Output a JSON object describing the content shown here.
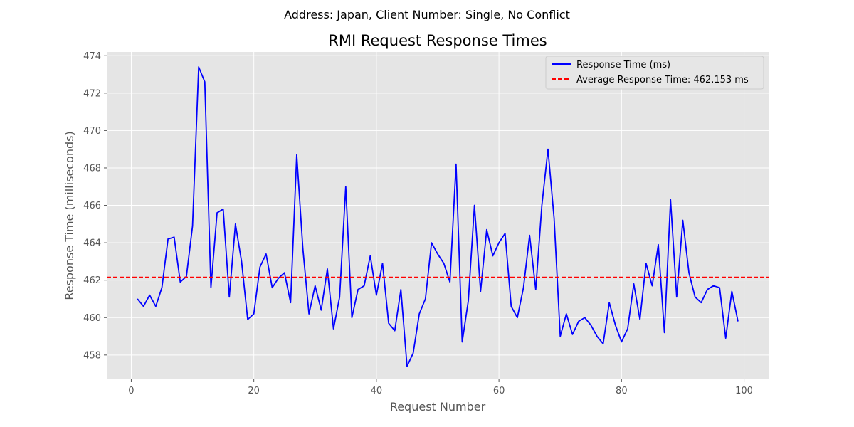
{
  "suptitle": "Address: Japan, Client Number: Single, No Conflict",
  "chart_data": {
    "type": "line",
    "title": "RMI Request Response Times",
    "xlabel": "Request Number",
    "ylabel": "Response Time (milliseconds)",
    "xlim": [
      -4,
      104
    ],
    "ylim": [
      456.7,
      474.2
    ],
    "x_ticks": [
      0,
      20,
      40,
      60,
      80,
      100
    ],
    "y_ticks": [
      458,
      460,
      462,
      464,
      466,
      468,
      470,
      472,
      474
    ],
    "grid": true,
    "legend_position": "top-right",
    "series": [
      {
        "name": "Response Time (ms)",
        "color": "#0000ff",
        "style": "solid",
        "x": [
          1,
          2,
          3,
          4,
          5,
          6,
          7,
          8,
          9,
          10,
          11,
          12,
          13,
          14,
          15,
          16,
          17,
          18,
          19,
          20,
          21,
          22,
          23,
          24,
          25,
          26,
          27,
          28,
          29,
          30,
          31,
          32,
          33,
          34,
          35,
          36,
          37,
          38,
          39,
          40,
          41,
          42,
          43,
          44,
          45,
          46,
          47,
          48,
          49,
          50,
          51,
          52,
          53,
          54,
          55,
          56,
          57,
          58,
          59,
          60,
          61,
          62,
          63,
          64,
          65,
          66,
          67,
          68,
          69,
          70,
          71,
          72,
          73,
          74,
          75,
          76,
          77,
          78,
          79,
          80,
          81,
          82,
          83,
          84,
          85,
          86,
          87,
          88,
          89,
          90,
          91,
          92,
          93,
          94,
          95,
          96,
          97,
          98,
          99
        ],
        "values": [
          461.0,
          460.6,
          461.2,
          460.6,
          461.6,
          464.2,
          464.3,
          461.9,
          462.2,
          464.9,
          473.4,
          472.6,
          461.6,
          465.6,
          465.8,
          461.1,
          465.0,
          463.0,
          459.9,
          460.2,
          462.7,
          463.4,
          461.6,
          462.1,
          462.4,
          460.8,
          468.7,
          463.7,
          460.2,
          461.7,
          460.4,
          462.6,
          459.4,
          461.1,
          467.0,
          460.0,
          461.5,
          461.7,
          463.3,
          461.2,
          462.9,
          459.7,
          459.3,
          461.5,
          457.4,
          458.1,
          460.2,
          461.0,
          464.0,
          463.4,
          462.9,
          461.9,
          468.2,
          458.7,
          460.9,
          466.0,
          461.4,
          464.7,
          463.3,
          464.0,
          464.5,
          460.6,
          460.0,
          461.6,
          464.4,
          461.5,
          466.0,
          469.0,
          465.3,
          459.0,
          460.2,
          459.1,
          459.8,
          460.0,
          459.6,
          459.0,
          458.6,
          460.8,
          459.6,
          458.7,
          459.4,
          461.8,
          459.9,
          462.9,
          461.7,
          463.9,
          459.2,
          466.3,
          461.1,
          465.2,
          462.4,
          461.1,
          460.8,
          461.5,
          461.7,
          461.6,
          458.9,
          461.4,
          459.8
        ]
      },
      {
        "name": "Average Response Time: 462.153 ms",
        "color": "#ff0000",
        "style": "dashed",
        "constant": 462.153
      }
    ]
  }
}
